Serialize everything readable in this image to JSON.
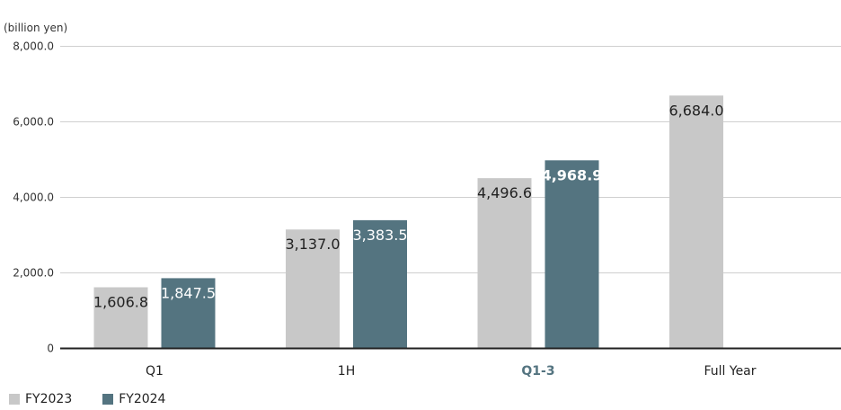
{
  "chart_data": {
    "type": "bar",
    "unit_label": "(billion yen)",
    "categories": [
      "Q1",
      "1H",
      "Q1-3",
      "Full Year"
    ],
    "highlight_category": "Q1-3",
    "series": [
      {
        "name": "FY2023",
        "color": "#c8c8c8",
        "values": [
          1606.8,
          3137.0,
          4496.6,
          6684.0
        ],
        "labels": [
          "1,606.8",
          "3,137.0",
          "4,496.6",
          "6,684.0"
        ]
      },
      {
        "name": "FY2024",
        "color": "#547480",
        "values": [
          1847.5,
          3383.5,
          4968.9,
          null
        ],
        "labels": [
          "1,847.5",
          "3,383.5",
          "4,968.9",
          ""
        ]
      }
    ],
    "yticks": [
      0,
      2000,
      4000,
      6000,
      8000
    ],
    "ytick_labels": [
      "0",
      "2,000.0",
      "4,000.0",
      "6,000.0",
      "8,000.0"
    ],
    "ylim": [
      0,
      8000
    ],
    "grid": true,
    "legend_position": "bottom-left"
  }
}
